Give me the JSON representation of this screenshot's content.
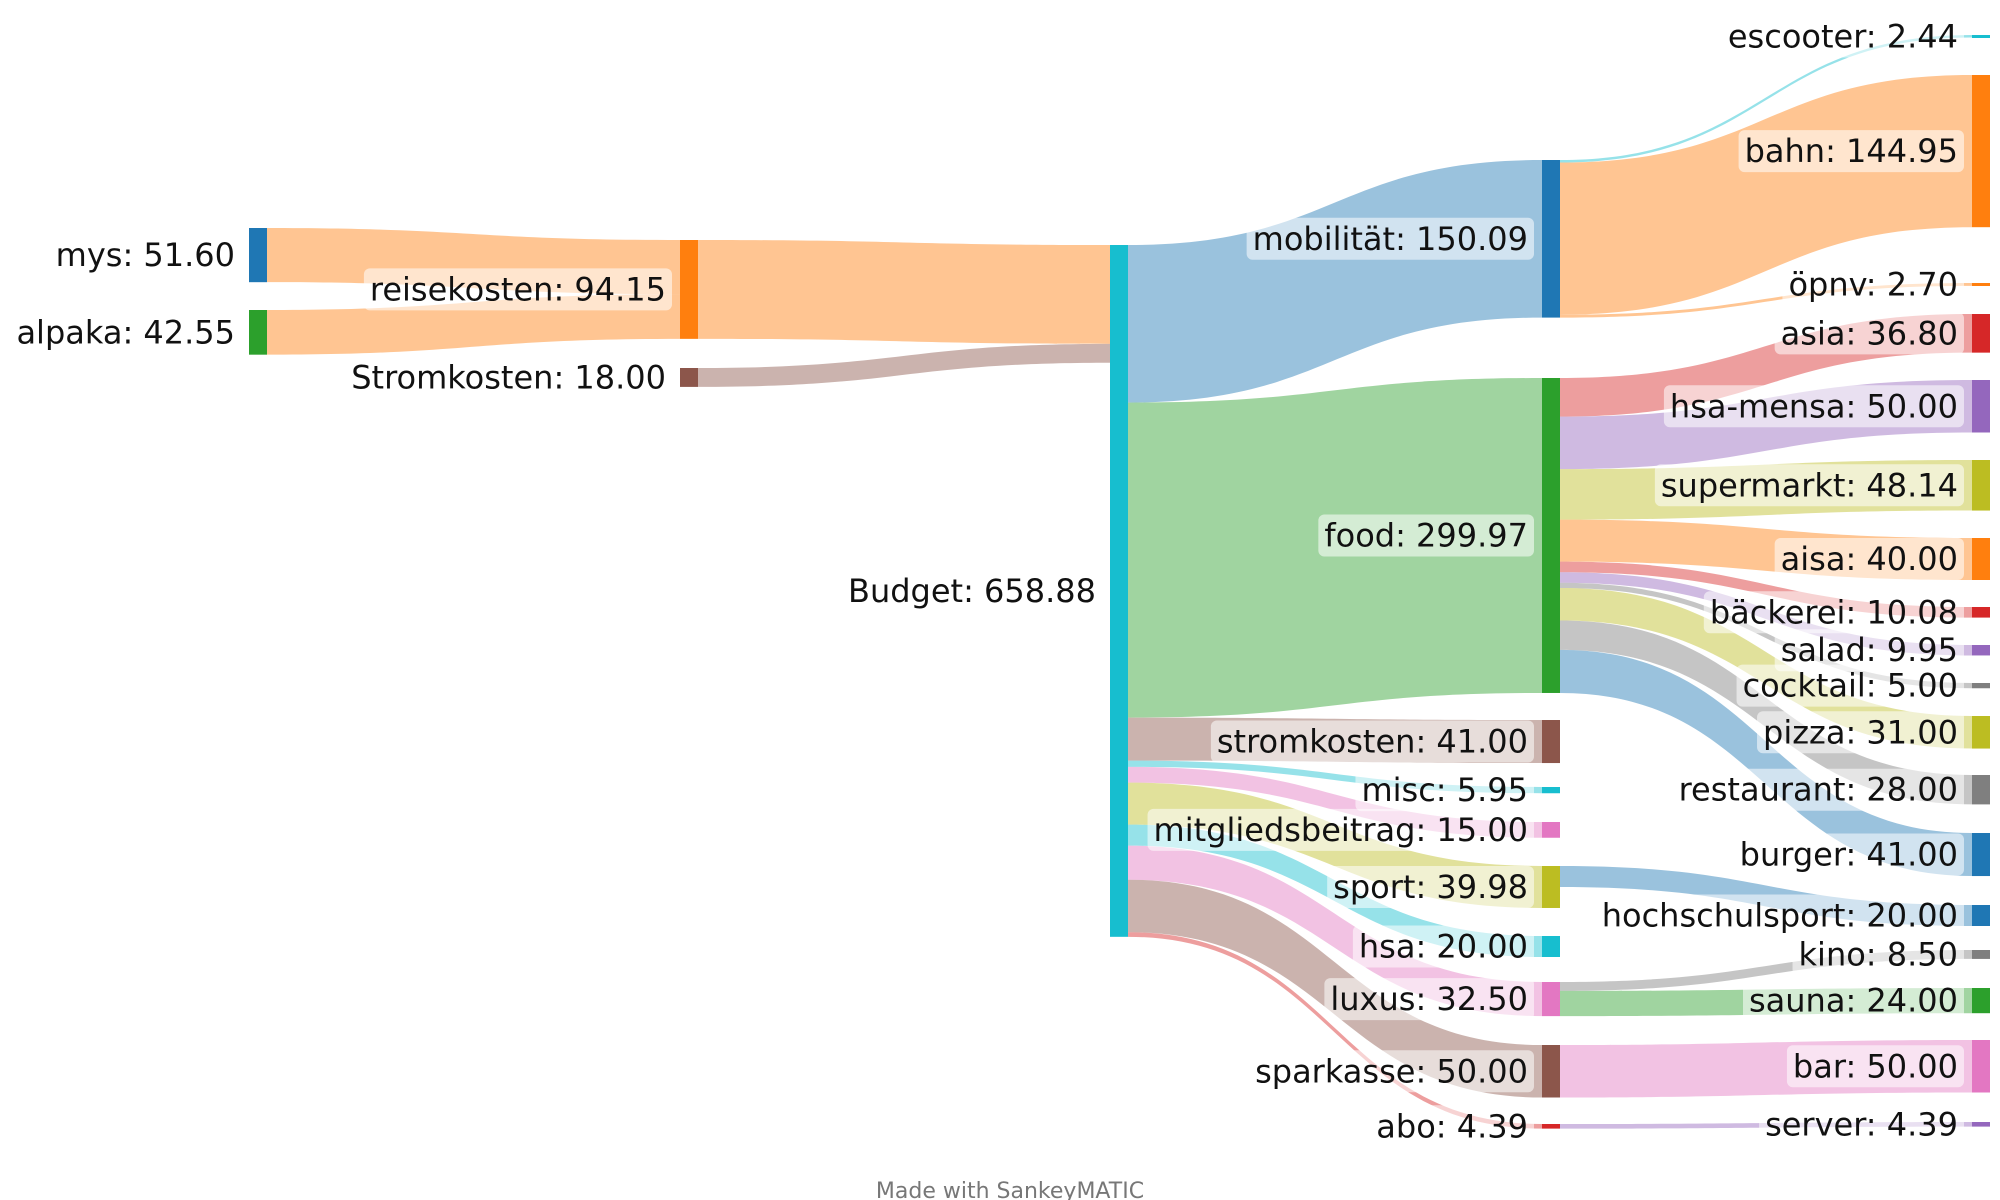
{
  "chart_data": {
    "type": "sankey",
    "nodes": [
      {
        "id": "mys",
        "label": "mys: 51.60",
        "value": 51.6,
        "color": "#1f77b4"
      },
      {
        "id": "alpaka",
        "label": "alpaka: 42.55",
        "value": 42.55,
        "color": "#2ca02c"
      },
      {
        "id": "reisekosten",
        "label": "reisekosten: 94.15",
        "value": 94.15,
        "color": "#ff7f0e"
      },
      {
        "id": "Stromkosten",
        "label": "Stromkosten: 18.00",
        "value": 18.0,
        "color": "#8c564b"
      },
      {
        "id": "Budget",
        "label": "Budget: 658.88",
        "value": 658.88,
        "color": "#17becf"
      },
      {
        "id": "mobilitaet",
        "label": "mobilität: 150.09",
        "value": 150.09,
        "color": "#1f77b4"
      },
      {
        "id": "food",
        "label": "food: 299.97",
        "value": 299.97,
        "color": "#2ca02c"
      },
      {
        "id": "stromkosten",
        "label": "stromkosten: 41.00",
        "value": 41.0,
        "color": "#8c564b"
      },
      {
        "id": "misc",
        "label": "misc: 5.95",
        "value": 5.95,
        "color": "#17becf"
      },
      {
        "id": "mitgliedsbeitrag",
        "label": "mitgliedsbeitrag: 15.00",
        "value": 15.0,
        "color": "#e377c2"
      },
      {
        "id": "sport",
        "label": "sport: 39.98",
        "value": 39.98,
        "color": "#bcbd22"
      },
      {
        "id": "hsa",
        "label": "hsa: 20.00",
        "value": 20.0,
        "color": "#17becf"
      },
      {
        "id": "luxus",
        "label": "luxus: 32.50",
        "value": 32.5,
        "color": "#e377c2"
      },
      {
        "id": "sparkasse",
        "label": "sparkasse: 50.00",
        "value": 50.0,
        "color": "#8c564b"
      },
      {
        "id": "abo",
        "label": "abo: 4.39",
        "value": 4.39,
        "color": "#d62728"
      },
      {
        "id": "escooter",
        "label": "escooter: 2.44",
        "value": 2.44,
        "color": "#17becf"
      },
      {
        "id": "bahn",
        "label": "bahn: 144.95",
        "value": 144.95,
        "color": "#ff7f0e"
      },
      {
        "id": "oepnv",
        "label": "öpnv: 2.70",
        "value": 2.7,
        "color": "#ff7f0e"
      },
      {
        "id": "asia",
        "label": "asia: 36.80",
        "value": 36.8,
        "color": "#d62728"
      },
      {
        "id": "hsa-mensa",
        "label": "hsa-mensa: 50.00",
        "value": 50.0,
        "color": "#9467bd"
      },
      {
        "id": "supermarkt",
        "label": "supermarkt: 48.14",
        "value": 48.14,
        "color": "#bcbd22"
      },
      {
        "id": "aisa",
        "label": "aisa: 40.00",
        "value": 40.0,
        "color": "#ff7f0e"
      },
      {
        "id": "baeckerei",
        "label": "bäckerei: 10.08",
        "value": 10.08,
        "color": "#d62728"
      },
      {
        "id": "salad",
        "label": "salad: 9.95",
        "value": 9.95,
        "color": "#9467bd"
      },
      {
        "id": "cocktail",
        "label": "cocktail: 5.00",
        "value": 5.0,
        "color": "#7f7f7f"
      },
      {
        "id": "pizza",
        "label": "pizza: 31.00",
        "value": 31.0,
        "color": "#bcbd22"
      },
      {
        "id": "restaurant",
        "label": "restaurant: 28.00",
        "value": 28.0,
        "color": "#7f7f7f"
      },
      {
        "id": "burger",
        "label": "burger: 41.00",
        "value": 41.0,
        "color": "#1f77b4"
      },
      {
        "id": "hochschulsport",
        "label": "hochschulsport: 20.00",
        "value": 20.0,
        "color": "#1f77b4"
      },
      {
        "id": "kino",
        "label": "kino: 8.50",
        "value": 8.5,
        "color": "#7f7f7f"
      },
      {
        "id": "sauna",
        "label": "sauna: 24.00",
        "value": 24.0,
        "color": "#2ca02c"
      },
      {
        "id": "bar",
        "label": "bar: 50.00",
        "value": 50.0,
        "color": "#e377c2"
      },
      {
        "id": "server",
        "label": "server: 4.39",
        "value": 4.39,
        "color": "#9467bd"
      }
    ],
    "links": [
      {
        "source": "mys",
        "target": "reisekosten",
        "value": 51.6
      },
      {
        "source": "alpaka",
        "target": "reisekosten",
        "value": 42.55
      },
      {
        "source": "reisekosten",
        "target": "Budget",
        "value": 94.15
      },
      {
        "source": "Stromkosten",
        "target": "Budget",
        "value": 18.0
      },
      {
        "source": "Budget",
        "target": "mobilitaet",
        "value": 150.09
      },
      {
        "source": "Budget",
        "target": "food",
        "value": 299.97
      },
      {
        "source": "Budget",
        "target": "stromkosten",
        "value": 41.0
      },
      {
        "source": "Budget",
        "target": "misc",
        "value": 5.95
      },
      {
        "source": "Budget",
        "target": "mitgliedsbeitrag",
        "value": 15.0
      },
      {
        "source": "Budget",
        "target": "sport",
        "value": 39.98
      },
      {
        "source": "Budget",
        "target": "hsa",
        "value": 20.0
      },
      {
        "source": "Budget",
        "target": "luxus",
        "value": 32.5
      },
      {
        "source": "Budget",
        "target": "sparkasse",
        "value": 50.0
      },
      {
        "source": "Budget",
        "target": "abo",
        "value": 4.39
      },
      {
        "source": "mobilitaet",
        "target": "escooter",
        "value": 2.44
      },
      {
        "source": "mobilitaet",
        "target": "bahn",
        "value": 144.95
      },
      {
        "source": "mobilitaet",
        "target": "oepnv",
        "value": 2.7
      },
      {
        "source": "food",
        "target": "asia",
        "value": 36.8
      },
      {
        "source": "food",
        "target": "hsa-mensa",
        "value": 50.0
      },
      {
        "source": "food",
        "target": "supermarkt",
        "value": 48.14
      },
      {
        "source": "food",
        "target": "aisa",
        "value": 40.0
      },
      {
        "source": "food",
        "target": "baeckerei",
        "value": 10.08
      },
      {
        "source": "food",
        "target": "salad",
        "value": 9.95
      },
      {
        "source": "food",
        "target": "cocktail",
        "value": 5.0
      },
      {
        "source": "food",
        "target": "pizza",
        "value": 31.0
      },
      {
        "source": "food",
        "target": "restaurant",
        "value": 28.0
      },
      {
        "source": "food",
        "target": "burger",
        "value": 41.0
      },
      {
        "source": "sport",
        "target": "hochschulsport",
        "value": 20.0
      },
      {
        "source": "luxus",
        "target": "kino",
        "value": 8.5
      },
      {
        "source": "luxus",
        "target": "sauna",
        "value": 24.0
      },
      {
        "source": "sparkasse",
        "target": "bar",
        "value": 50.0
      },
      {
        "source": "abo",
        "target": "server",
        "value": 4.39
      }
    ],
    "credit": "Made with SankeyMATIC"
  }
}
